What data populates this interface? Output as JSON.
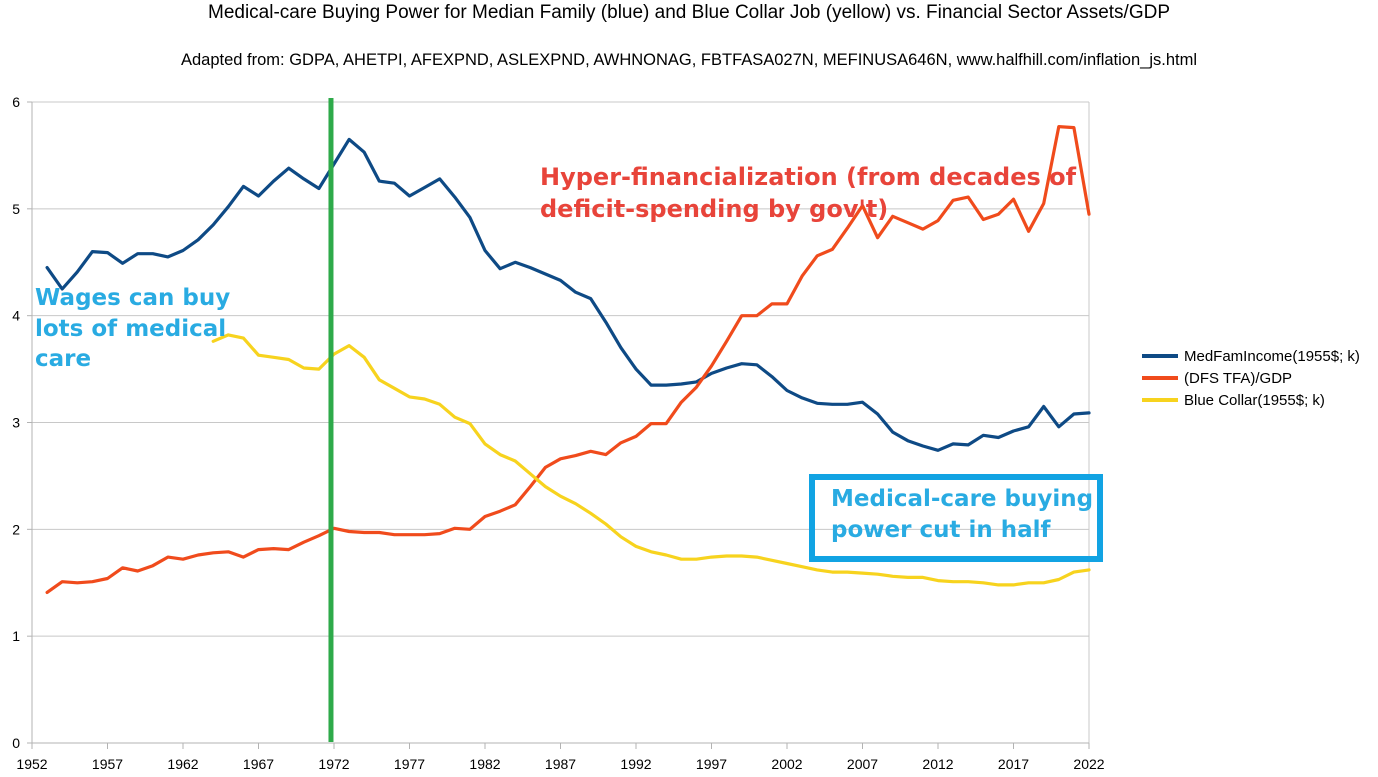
{
  "chart_data": {
    "type": "line",
    "title": "Medical-care Buying Power for Median Family (blue) and Blue Collar Job (yellow) vs. Financial Sector Assets/GDP",
    "subtitle": "Adapted from: GDPA, AHETPI, AFEXPND, ASLEXPND, AWHNONAG, FBTFASA027N, MEFINUSA646N, www.halfhill.com/inflation_js.html",
    "xlim": [
      1952,
      2022
    ],
    "ylim": [
      0,
      6
    ],
    "x_ticks": [
      "1952",
      "1957",
      "1962",
      "1967",
      "1972",
      "1977",
      "1982",
      "1987",
      "1992",
      "1997",
      "2002",
      "2007",
      "2012",
      "2017",
      "2022"
    ],
    "y_ticks": [
      "0",
      "1",
      "2",
      "3",
      "4",
      "5",
      "6"
    ],
    "grid": "horizontal",
    "legend_position": "right",
    "vertical_marker": {
      "x": 1971.8,
      "color": "#2eaa4a"
    },
    "series": [
      {
        "name": "MedFamIncome(1955$; k)",
        "color": "#0e4a85",
        "points": [
          [
            1953,
            4.45
          ],
          [
            1954,
            4.25
          ],
          [
            1955,
            4.41
          ],
          [
            1956,
            4.6
          ],
          [
            1957,
            4.59
          ],
          [
            1958,
            4.49
          ],
          [
            1959,
            4.58
          ],
          [
            1960,
            4.58
          ],
          [
            1961,
            4.55
          ],
          [
            1962,
            4.61
          ],
          [
            1963,
            4.71
          ],
          [
            1964,
            4.85
          ],
          [
            1965,
            5.02
          ],
          [
            1966,
            5.21
          ],
          [
            1967,
            5.12
          ],
          [
            1968,
            5.26
          ],
          [
            1969,
            5.38
          ],
          [
            1970,
            5.28
          ],
          [
            1971,
            5.19
          ],
          [
            1972,
            5.42
          ],
          [
            1973,
            5.65
          ],
          [
            1974,
            5.53
          ],
          [
            1975,
            5.26
          ],
          [
            1976,
            5.24
          ],
          [
            1977,
            5.12
          ],
          [
            1978,
            5.2
          ],
          [
            1979,
            5.28
          ],
          [
            1980,
            5.11
          ],
          [
            1981,
            4.92
          ],
          [
            1982,
            4.61
          ],
          [
            1983,
            4.44
          ],
          [
            1984,
            4.5
          ],
          [
            1985,
            4.45
          ],
          [
            1986,
            4.39
          ],
          [
            1987,
            4.33
          ],
          [
            1988,
            4.22
          ],
          [
            1989,
            4.16
          ],
          [
            1990,
            3.94
          ],
          [
            1991,
            3.7
          ],
          [
            1992,
            3.5
          ],
          [
            1993,
            3.35
          ],
          [
            1994,
            3.35
          ],
          [
            1995,
            3.36
          ],
          [
            1996,
            3.38
          ],
          [
            1997,
            3.46
          ],
          [
            1998,
            3.51
          ],
          [
            1999,
            3.55
          ],
          [
            2000,
            3.54
          ],
          [
            2001,
            3.43
          ],
          [
            2002,
            3.3
          ],
          [
            2003,
            3.23
          ],
          [
            2004,
            3.18
          ],
          [
            2005,
            3.17
          ],
          [
            2006,
            3.17
          ],
          [
            2007,
            3.19
          ],
          [
            2008,
            3.08
          ],
          [
            2009,
            2.91
          ],
          [
            2010,
            2.83
          ],
          [
            2011,
            2.78
          ],
          [
            2012,
            2.74
          ],
          [
            2013,
            2.8
          ],
          [
            2014,
            2.79
          ],
          [
            2015,
            2.88
          ],
          [
            2016,
            2.86
          ],
          [
            2017,
            2.92
          ],
          [
            2018,
            2.96
          ],
          [
            2019,
            3.15
          ],
          [
            2020,
            2.96
          ],
          [
            2021,
            3.08
          ],
          [
            2022,
            3.09
          ]
        ]
      },
      {
        "name": "(DFS TFA)/GDP",
        "color": "#f04b1c",
        "points": [
          [
            1953,
            1.41
          ],
          [
            1954,
            1.51
          ],
          [
            1955,
            1.5
          ],
          [
            1956,
            1.51
          ],
          [
            1957,
            1.54
          ],
          [
            1958,
            1.64
          ],
          [
            1959,
            1.61
          ],
          [
            1960,
            1.66
          ],
          [
            1961,
            1.74
          ],
          [
            1962,
            1.72
          ],
          [
            1963,
            1.76
          ],
          [
            1964,
            1.78
          ],
          [
            1965,
            1.79
          ],
          [
            1966,
            1.74
          ],
          [
            1967,
            1.81
          ],
          [
            1968,
            1.82
          ],
          [
            1969,
            1.81
          ],
          [
            1970,
            1.88
          ],
          [
            1971,
            1.94
          ],
          [
            1972,
            2.01
          ],
          [
            1973,
            1.98
          ],
          [
            1974,
            1.97
          ],
          [
            1975,
            1.97
          ],
          [
            1976,
            1.95
          ],
          [
            1977,
            1.95
          ],
          [
            1978,
            1.95
          ],
          [
            1979,
            1.96
          ],
          [
            1980,
            2.01
          ],
          [
            1981,
            2.0
          ],
          [
            1982,
            2.12
          ],
          [
            1983,
            2.17
          ],
          [
            1984,
            2.23
          ],
          [
            1985,
            2.4
          ],
          [
            1986,
            2.58
          ],
          [
            1987,
            2.66
          ],
          [
            1988,
            2.69
          ],
          [
            1989,
            2.73
          ],
          [
            1990,
            2.7
          ],
          [
            1991,
            2.81
          ],
          [
            1992,
            2.87
          ],
          [
            1993,
            2.99
          ],
          [
            1994,
            2.99
          ],
          [
            1995,
            3.19
          ],
          [
            1996,
            3.33
          ],
          [
            1997,
            3.53
          ],
          [
            1998,
            3.76
          ],
          [
            1999,
            4.0
          ],
          [
            2000,
            4.0
          ],
          [
            2001,
            4.11
          ],
          [
            2002,
            4.11
          ],
          [
            2003,
            4.37
          ],
          [
            2004,
            4.56
          ],
          [
            2005,
            4.62
          ],
          [
            2006,
            4.82
          ],
          [
            2007,
            5.03
          ],
          [
            2008,
            4.73
          ],
          [
            2009,
            4.93
          ],
          [
            2010,
            4.87
          ],
          [
            2011,
            4.81
          ],
          [
            2012,
            4.89
          ],
          [
            2013,
            5.08
          ],
          [
            2014,
            5.11
          ],
          [
            2015,
            4.9
          ],
          [
            2016,
            4.95
          ],
          [
            2017,
            5.09
          ],
          [
            2018,
            4.79
          ],
          [
            2019,
            5.05
          ],
          [
            2020,
            5.77
          ],
          [
            2021,
            5.76
          ],
          [
            2022,
            4.95
          ]
        ]
      },
      {
        "name": "Blue Collar(1955$; k)",
        "color": "#f7d31e",
        "points": [
          [
            1964,
            3.76
          ],
          [
            1965,
            3.82
          ],
          [
            1966,
            3.79
          ],
          [
            1967,
            3.63
          ],
          [
            1968,
            3.61
          ],
          [
            1969,
            3.59
          ],
          [
            1970,
            3.51
          ],
          [
            1971,
            3.5
          ],
          [
            1972,
            3.64
          ],
          [
            1973,
            3.72
          ],
          [
            1974,
            3.61
          ],
          [
            1975,
            3.4
          ],
          [
            1976,
            3.32
          ],
          [
            1977,
            3.24
          ],
          [
            1978,
            3.22
          ],
          [
            1979,
            3.17
          ],
          [
            1980,
            3.05
          ],
          [
            1981,
            2.99
          ],
          [
            1982,
            2.8
          ],
          [
            1983,
            2.7
          ],
          [
            1984,
            2.64
          ],
          [
            1985,
            2.52
          ],
          [
            1986,
            2.4
          ],
          [
            1987,
            2.31
          ],
          [
            1988,
            2.24
          ],
          [
            1989,
            2.15
          ],
          [
            1990,
            2.05
          ],
          [
            1991,
            1.93
          ],
          [
            1992,
            1.84
          ],
          [
            1993,
            1.79
          ],
          [
            1994,
            1.76
          ],
          [
            1995,
            1.72
          ],
          [
            1996,
            1.72
          ],
          [
            1997,
            1.74
          ],
          [
            1998,
            1.75
          ],
          [
            1999,
            1.75
          ],
          [
            2000,
            1.74
          ],
          [
            2001,
            1.71
          ],
          [
            2002,
            1.68
          ],
          [
            2003,
            1.65
          ],
          [
            2004,
            1.62
          ],
          [
            2005,
            1.6
          ],
          [
            2006,
            1.6
          ],
          [
            2007,
            1.59
          ],
          [
            2008,
            1.58
          ],
          [
            2009,
            1.56
          ],
          [
            2010,
            1.55
          ],
          [
            2011,
            1.55
          ],
          [
            2012,
            1.52
          ],
          [
            2013,
            1.51
          ],
          [
            2014,
            1.51
          ],
          [
            2015,
            1.5
          ],
          [
            2016,
            1.48
          ],
          [
            2017,
            1.48
          ],
          [
            2018,
            1.5
          ],
          [
            2019,
            1.5
          ],
          [
            2020,
            1.53
          ],
          [
            2021,
            1.6
          ],
          [
            2022,
            1.62
          ]
        ]
      }
    ],
    "annotations": {
      "wages": [
        "Wages can buy",
        "lots of medical",
        "care"
      ],
      "hyper": [
        "Hyper-financialization (from decades of",
        "deficit-spending by gov't)"
      ],
      "cut": [
        "Medical-care buying",
        "power cut in half"
      ]
    }
  }
}
